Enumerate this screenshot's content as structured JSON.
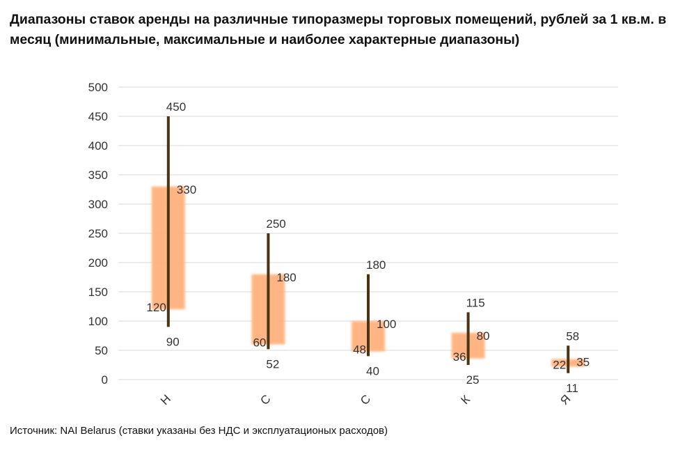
{
  "title": "Диапазоны ставок аренды на различные типоразмеры торговых помещений, рублей за 1 кв.м. в месяц (минимальные, максимальные и наиболее характерные диапазоны)",
  "source": "Источник: NAI Belarus (ставки указаны без НДС и эксплуатационых расходов)",
  "colors": {
    "range_line": "#4a3414",
    "typical_box": "#ffb27d",
    "grid": "#d9d9d9",
    "text": "#333333"
  },
  "chart_data": {
    "type": "range",
    "ylim": [
      0,
      500
    ],
    "yticks": [
      "0",
      "50",
      "100",
      "150",
      "200",
      "250",
      "300",
      "350",
      "400",
      "450",
      "500"
    ],
    "grid": true,
    "categories": [
      "Н",
      "С",
      "С",
      "К",
      "Я"
    ],
    "series": [
      {
        "min": 90,
        "max": 450,
        "typical_low": 120,
        "typical_high": 330
      },
      {
        "min": 52,
        "max": 250,
        "typical_low": 60,
        "typical_high": 180
      },
      {
        "min": 40,
        "max": 180,
        "typical_low": 48,
        "typical_high": 100
      },
      {
        "min": 25,
        "max": 115,
        "typical_low": 36,
        "typical_high": 80
      },
      {
        "min": 11,
        "max": 58,
        "typical_low": 22,
        "typical_high": 35
      }
    ]
  }
}
